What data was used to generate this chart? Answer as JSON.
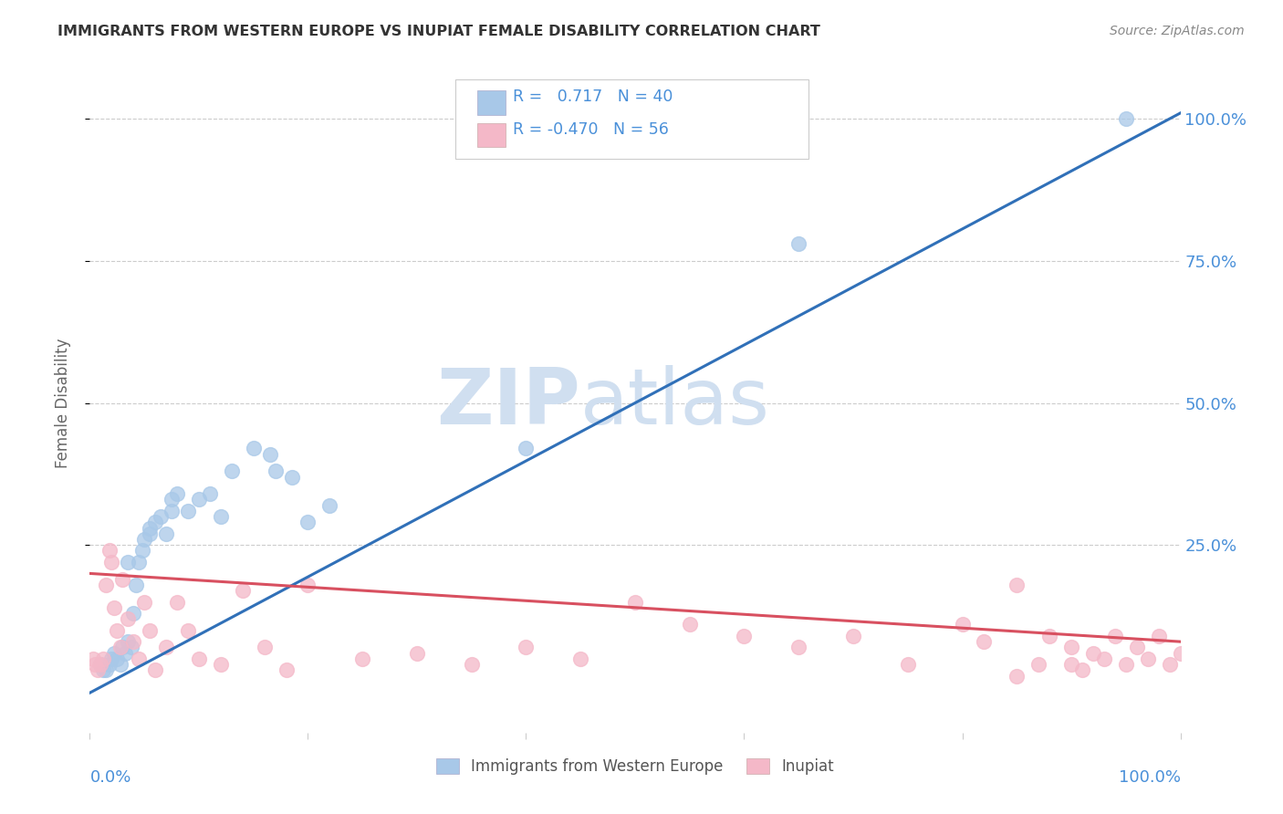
{
  "title": "IMMIGRANTS FROM WESTERN EUROPE VS INUPIAT FEMALE DISABILITY CORRELATION CHART",
  "source": "Source: ZipAtlas.com",
  "ylabel": "Female Disability",
  "ytick_labels": [
    "25.0%",
    "50.0%",
    "75.0%",
    "100.0%"
  ],
  "ytick_values": [
    25,
    50,
    75,
    100
  ],
  "xtick_values": [
    0,
    20,
    40,
    60,
    80,
    100
  ],
  "legend_labels": [
    "Immigrants from Western Europe",
    "Inupiat"
  ],
  "blue_R": 0.717,
  "blue_N": 40,
  "pink_R": -0.47,
  "pink_N": 56,
  "blue_color": "#a8c8e8",
  "pink_color": "#f4b8c8",
  "blue_line_color": "#3070b8",
  "pink_line_color": "#d85060",
  "title_color": "#333333",
  "axis_label_color": "#4a90d9",
  "watermark_color": "#d0dff0",
  "blue_x": [
    1.2,
    1.5,
    1.8,
    2.0,
    2.2,
    2.5,
    2.8,
    3.0,
    3.2,
    3.5,
    3.8,
    4.0,
    4.2,
    4.5,
    4.8,
    5.0,
    5.5,
    6.0,
    6.5,
    7.0,
    7.5,
    8.0,
    9.0,
    10.0,
    11.0,
    12.0,
    13.0,
    15.0,
    16.5,
    17.0,
    18.5,
    20.0,
    22.0,
    3.5,
    5.5,
    7.5,
    40.0,
    65.0,
    95.0,
    1.0
  ],
  "blue_y": [
    3,
    3,
    4,
    5,
    6,
    5,
    4,
    7,
    6,
    8,
    7,
    13,
    18,
    22,
    24,
    26,
    27,
    29,
    30,
    27,
    31,
    34,
    31,
    33,
    34,
    30,
    38,
    42,
    41,
    38,
    37,
    29,
    32,
    22,
    28,
    33,
    42,
    78,
    100,
    4
  ],
  "pink_x": [
    0.3,
    0.5,
    0.7,
    1.0,
    1.2,
    1.5,
    1.8,
    2.0,
    2.2,
    2.5,
    2.8,
    3.0,
    3.5,
    4.0,
    4.5,
    5.0,
    5.5,
    6.0,
    7.0,
    8.0,
    9.0,
    10.0,
    12.0,
    14.0,
    16.0,
    18.0,
    20.0,
    25.0,
    30.0,
    35.0,
    40.0,
    45.0,
    50.0,
    55.0,
    60.0,
    65.0,
    70.0,
    75.0,
    80.0,
    82.0,
    85.0,
    87.0,
    88.0,
    90.0,
    91.0,
    92.0,
    93.0,
    94.0,
    95.0,
    96.0,
    97.0,
    98.0,
    99.0,
    100.0,
    85.0,
    90.0
  ],
  "pink_y": [
    5,
    4,
    3,
    4,
    5,
    18,
    24,
    22,
    14,
    10,
    7,
    19,
    12,
    8,
    5,
    15,
    10,
    3,
    7,
    15,
    10,
    5,
    4,
    17,
    7,
    3,
    18,
    5,
    6,
    4,
    7,
    5,
    15,
    11,
    9,
    7,
    9,
    4,
    11,
    8,
    18,
    4,
    9,
    7,
    3,
    6,
    5,
    9,
    4,
    7,
    5,
    9,
    4,
    6,
    2,
    4
  ],
  "xlim": [
    0,
    100
  ],
  "ylim": [
    -8,
    108
  ],
  "blue_trend_x0": 0,
  "blue_trend_y0": -1,
  "blue_trend_x1": 100,
  "blue_trend_y1": 101,
  "pink_trend_x0": 0,
  "pink_trend_y0": 20,
  "pink_trend_x1": 100,
  "pink_trend_y1": 8
}
